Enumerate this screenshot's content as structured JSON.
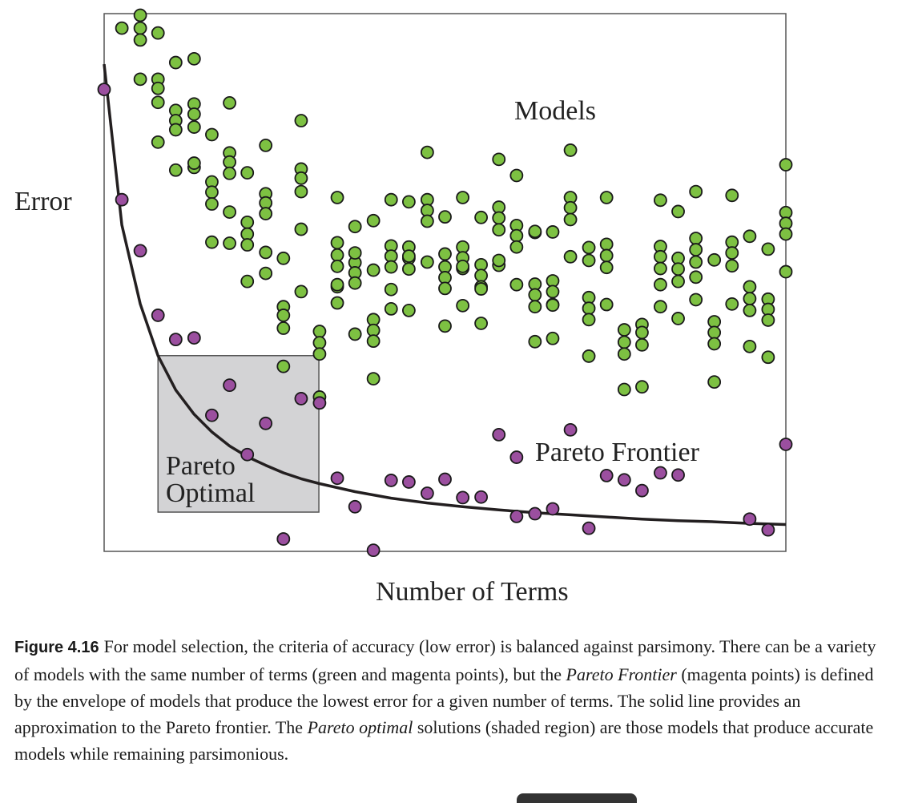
{
  "chart_data": {
    "type": "scatter",
    "title": "",
    "xlabel": "Number of Terms",
    "ylabel": "Error",
    "xlim": [
      0,
      1
    ],
    "ylim": [
      0,
      1
    ],
    "grid": false,
    "colors": {
      "models": "#7dc142",
      "pareto": "#9b4f9f",
      "outline": "#1a1a1a",
      "shaded": "#d3d3d5",
      "curve": "#231f20"
    },
    "annotations": {
      "models": "Models",
      "pareto_frontier": "Pareto Frontier",
      "pareto_optimal_line1": "Pareto",
      "pareto_optimal_line2": "Optimal"
    },
    "shaded_region": {
      "x0": 0.079,
      "x1": 0.315,
      "y0": 0.073,
      "y1": 0.364
    },
    "series": [
      {
        "name": "",
        "role": "models",
        "points": [
          [
            0.026,
            0.973
          ],
          [
            0.053,
            0.997
          ],
          [
            0.053,
            0.973
          ],
          [
            0.053,
            0.951
          ],
          [
            0.079,
            0.964
          ],
          [
            0.105,
            0.909
          ],
          [
            0.132,
            0.916
          ],
          [
            0.053,
            0.878
          ],
          [
            0.079,
            0.878
          ],
          [
            0.079,
            0.861
          ],
          [
            0.079,
            0.835
          ],
          [
            0.105,
            0.82
          ],
          [
            0.105,
            0.801
          ],
          [
            0.105,
            0.784
          ],
          [
            0.132,
            0.832
          ],
          [
            0.132,
            0.813
          ],
          [
            0.132,
            0.789
          ],
          [
            0.079,
            0.761
          ],
          [
            0.105,
            0.709
          ],
          [
            0.132,
            0.714
          ],
          [
            0.158,
            0.775
          ],
          [
            0.184,
            0.834
          ],
          [
            0.158,
            0.687
          ],
          [
            0.158,
            0.668
          ],
          [
            0.158,
            0.646
          ],
          [
            0.184,
            0.741
          ],
          [
            0.184,
            0.724
          ],
          [
            0.184,
            0.703
          ],
          [
            0.21,
            0.704
          ],
          [
            0.184,
            0.631
          ],
          [
            0.21,
            0.612
          ],
          [
            0.21,
            0.59
          ],
          [
            0.21,
            0.57
          ],
          [
            0.158,
            0.575
          ],
          [
            0.237,
            0.755
          ],
          [
            0.237,
            0.665
          ],
          [
            0.237,
            0.648
          ],
          [
            0.237,
            0.628
          ],
          [
            0.237,
            0.556
          ],
          [
            0.263,
            0.545
          ],
          [
            0.21,
            0.502
          ],
          [
            0.289,
            0.801
          ],
          [
            0.289,
            0.711
          ],
          [
            0.289,
            0.694
          ],
          [
            0.289,
            0.669
          ],
          [
            0.289,
            0.599
          ],
          [
            0.263,
            0.455
          ],
          [
            0.263,
            0.439
          ],
          [
            0.263,
            0.415
          ],
          [
            0.316,
            0.409
          ],
          [
            0.316,
            0.388
          ],
          [
            0.316,
            0.367
          ],
          [
            0.263,
            0.344
          ],
          [
            0.316,
            0.287
          ],
          [
            0.342,
            0.492
          ],
          [
            0.342,
            0.658
          ],
          [
            0.368,
            0.604
          ],
          [
            0.342,
            0.574
          ],
          [
            0.342,
            0.551
          ],
          [
            0.342,
            0.53
          ],
          [
            0.342,
            0.462
          ],
          [
            0.368,
            0.537
          ],
          [
            0.368,
            0.518
          ],
          [
            0.368,
            0.499
          ],
          [
            0.395,
            0.523
          ],
          [
            0.368,
            0.404
          ],
          [
            0.395,
            0.431
          ],
          [
            0.395,
            0.411
          ],
          [
            0.395,
            0.391
          ],
          [
            0.395,
            0.321
          ],
          [
            0.421,
            0.654
          ],
          [
            0.421,
            0.568
          ],
          [
            0.421,
            0.549
          ],
          [
            0.421,
            0.529
          ],
          [
            0.421,
            0.451
          ],
          [
            0.447,
            0.65
          ],
          [
            0.447,
            0.566
          ],
          [
            0.447,
            0.545
          ],
          [
            0.447,
            0.525
          ],
          [
            0.447,
            0.448
          ],
          [
            0.474,
            0.742
          ],
          [
            0.474,
            0.654
          ],
          [
            0.474,
            0.634
          ],
          [
            0.474,
            0.614
          ],
          [
            0.474,
            0.538
          ],
          [
            0.5,
            0.622
          ],
          [
            0.5,
            0.529
          ],
          [
            0.5,
            0.509
          ],
          [
            0.5,
            0.489
          ],
          [
            0.5,
            0.419
          ],
          [
            0.526,
            0.658
          ],
          [
            0.526,
            0.566
          ],
          [
            0.526,
            0.546
          ],
          [
            0.526,
            0.526
          ],
          [
            0.526,
            0.457
          ],
          [
            0.553,
            0.621
          ],
          [
            0.553,
            0.533
          ],
          [
            0.553,
            0.513
          ],
          [
            0.553,
            0.492
          ],
          [
            0.553,
            0.424
          ],
          [
            0.579,
            0.729
          ],
          [
            0.579,
            0.64
          ],
          [
            0.579,
            0.62
          ],
          [
            0.579,
            0.598
          ],
          [
            0.579,
            0.532
          ],
          [
            0.605,
            0.699
          ],
          [
            0.605,
            0.606
          ],
          [
            0.605,
            0.587
          ],
          [
            0.605,
            0.566
          ],
          [
            0.605,
            0.496
          ],
          [
            0.632,
            0.593
          ],
          [
            0.632,
            0.497
          ],
          [
            0.632,
            0.477
          ],
          [
            0.632,
            0.455
          ],
          [
            0.632,
            0.39
          ],
          [
            0.658,
            0.594
          ],
          [
            0.658,
            0.503
          ],
          [
            0.658,
            0.483
          ],
          [
            0.658,
            0.459
          ],
          [
            0.658,
            0.396
          ],
          [
            0.684,
            0.746
          ],
          [
            0.684,
            0.658
          ],
          [
            0.684,
            0.639
          ],
          [
            0.684,
            0.617
          ],
          [
            0.684,
            0.548
          ],
          [
            0.711,
            0.565
          ],
          [
            0.711,
            0.472
          ],
          [
            0.711,
            0.452
          ],
          [
            0.711,
            0.431
          ],
          [
            0.711,
            0.363
          ],
          [
            0.737,
            0.658
          ],
          [
            0.737,
            0.571
          ],
          [
            0.737,
            0.55
          ],
          [
            0.737,
            0.528
          ],
          [
            0.737,
            0.459
          ],
          [
            0.763,
            0.412
          ],
          [
            0.763,
            0.389
          ],
          [
            0.763,
            0.367
          ],
          [
            0.763,
            0.301
          ],
          [
            0.789,
            0.422
          ],
          [
            0.789,
            0.407
          ],
          [
            0.789,
            0.384
          ],
          [
            0.789,
            0.306
          ],
          [
            0.816,
            0.653
          ],
          [
            0.816,
            0.567
          ],
          [
            0.816,
            0.548
          ],
          [
            0.816,
            0.526
          ],
          [
            0.816,
            0.455
          ],
          [
            0.842,
            0.632
          ],
          [
            0.842,
            0.545
          ],
          [
            0.842,
            0.525
          ],
          [
            0.842,
            0.502
          ],
          [
            0.842,
            0.433
          ],
          [
            0.868,
            0.669
          ],
          [
            0.868,
            0.582
          ],
          [
            0.868,
            0.561
          ],
          [
            0.868,
            0.538
          ],
          [
            0.868,
            0.468
          ],
          [
            0.895,
            0.427
          ],
          [
            0.895,
            0.407
          ],
          [
            0.895,
            0.386
          ],
          [
            0.895,
            0.315
          ],
          [
            0.921,
            0.662
          ],
          [
            0.921,
            0.575
          ],
          [
            0.921,
            0.555
          ],
          [
            0.921,
            0.531
          ],
          [
            0.921,
            0.46
          ],
          [
            0.947,
            0.586
          ],
          [
            0.947,
            0.492
          ],
          [
            0.947,
            0.47
          ],
          [
            0.947,
            0.448
          ],
          [
            0.947,
            0.381
          ],
          [
            0.974,
            0.562
          ],
          [
            0.974,
            0.469
          ],
          [
            0.974,
            0.45
          ],
          [
            0.974,
            0.43
          ],
          [
            0.974,
            0.361
          ],
          [
            1.0,
            0.719
          ],
          [
            1.0,
            0.63
          ],
          [
            1.0,
            0.61
          ],
          [
            1.0,
            0.59
          ],
          [
            1.0,
            0.52
          ],
          [
            0.895,
            0.542
          ],
          [
            0.868,
            0.51
          ],
          [
            0.816,
            0.496
          ],
          [
            0.711,
            0.541
          ],
          [
            0.632,
            0.595
          ],
          [
            0.579,
            0.541
          ],
          [
            0.526,
            0.53
          ],
          [
            0.447,
            0.549
          ],
          [
            0.395,
            0.615
          ],
          [
            0.342,
            0.496
          ],
          [
            0.237,
            0.517
          ],
          [
            0.184,
            0.573
          ],
          [
            0.132,
            0.722
          ],
          [
            0.658,
            0.458
          ],
          [
            0.553,
            0.488
          ],
          [
            0.5,
            0.553
          ],
          [
            0.421,
            0.487
          ],
          [
            0.368,
            0.555
          ],
          [
            0.289,
            0.483
          ]
        ]
      },
      {
        "name": "",
        "role": "pareto",
        "points": [
          [
            0.0,
            0.859
          ],
          [
            0.026,
            0.654
          ],
          [
            0.053,
            0.559
          ],
          [
            0.079,
            0.439
          ],
          [
            0.105,
            0.394
          ],
          [
            0.132,
            0.397
          ],
          [
            0.184,
            0.309
          ],
          [
            0.158,
            0.253
          ],
          [
            0.237,
            0.238
          ],
          [
            0.289,
            0.284
          ],
          [
            0.21,
            0.18
          ],
          [
            0.342,
            0.136
          ],
          [
            0.368,
            0.083
          ],
          [
            0.263,
            0.023
          ],
          [
            0.395,
            0.002
          ],
          [
            0.421,
            0.132
          ],
          [
            0.447,
            0.129
          ],
          [
            0.474,
            0.108
          ],
          [
            0.5,
            0.134
          ],
          [
            0.526,
            0.1
          ],
          [
            0.553,
            0.101
          ],
          [
            0.579,
            0.217
          ],
          [
            0.605,
            0.175
          ],
          [
            0.632,
            0.07
          ],
          [
            0.658,
            0.079
          ],
          [
            0.684,
            0.226
          ],
          [
            0.711,
            0.043
          ],
          [
            0.737,
            0.141
          ],
          [
            0.763,
            0.133
          ],
          [
            0.789,
            0.113
          ],
          [
            0.816,
            0.146
          ],
          [
            0.842,
            0.142
          ],
          [
            0.947,
            0.06
          ],
          [
            0.974,
            0.04
          ],
          [
            1.0,
            0.199
          ],
          [
            0.605,
            0.065
          ],
          [
            0.316,
            0.276
          ]
        ]
      }
    ],
    "frontier_curve": [
      [
        0.0,
        0.906
      ],
      [
        0.026,
        0.607
      ],
      [
        0.053,
        0.46
      ],
      [
        0.079,
        0.364
      ],
      [
        0.105,
        0.3
      ],
      [
        0.132,
        0.255
      ],
      [
        0.158,
        0.222
      ],
      [
        0.184,
        0.196
      ],
      [
        0.21,
        0.176
      ],
      [
        0.237,
        0.16
      ],
      [
        0.263,
        0.146
      ],
      [
        0.289,
        0.135
      ],
      [
        0.316,
        0.126
      ],
      [
        0.368,
        0.111
      ],
      [
        0.421,
        0.099
      ],
      [
        0.474,
        0.09
      ],
      [
        0.526,
        0.083
      ],
      [
        0.579,
        0.077
      ],
      [
        0.632,
        0.072
      ],
      [
        0.684,
        0.068
      ],
      [
        0.737,
        0.064
      ],
      [
        0.789,
        0.06
      ],
      [
        0.842,
        0.057
      ],
      [
        0.895,
        0.055
      ],
      [
        0.947,
        0.052
      ],
      [
        1.0,
        0.05
      ]
    ]
  },
  "caption": {
    "label": "Figure 4.16",
    "part1": "For model selection, the criteria of accuracy (low error) is balanced against parsimony. There can be a variety of models with the same number of terms (green and magenta points), but the ",
    "italic1": "Pareto Frontier",
    "part2": " (magenta points) is defined by the envelope of models that produce the lowest error for a given number of terms. The solid line provides an approximation to the Pareto frontier. The ",
    "italic2": "Pareto optimal",
    "part3": " solutions (shaded region) are those models that produce accurate models while remaining parsimonious."
  }
}
